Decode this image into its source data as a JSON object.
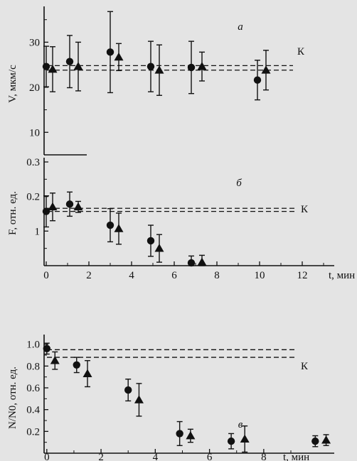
{
  "chart_data": [
    {
      "type": "scatter",
      "panel_label": "а",
      "ylabel": "V, мкм/с",
      "xlabel": "",
      "ylim": [
        5,
        37
      ],
      "xlim": [
        -0.1,
        13.5
      ],
      "yticks": [
        "10",
        "20",
        "30"
      ],
      "xticks": [],
      "reference_label": "К",
      "reference_lines": [
        23.8,
        24.8
      ],
      "series": [
        {
          "marker": "circle",
          "x": [
            0,
            1.1,
            3.0,
            4.9,
            6.8,
            9.9
          ],
          "y": [
            24.6,
            25.7,
            27.8,
            24.6,
            24.4,
            21.6
          ],
          "err": [
            4.5,
            5.8,
            9.0,
            5.6,
            5.8,
            4.4
          ]
        },
        {
          "marker": "triangle",
          "x": [
            0.3,
            1.5,
            3.4,
            5.3,
            7.3,
            10.3
          ],
          "y": [
            24.0,
            24.6,
            26.7,
            23.8,
            24.6,
            23.8
          ],
          "err": [
            5.0,
            5.4,
            3.0,
            5.6,
            3.2,
            4.4
          ]
        }
      ]
    },
    {
      "type": "scatter",
      "panel_label": "б",
      "ylabel": "F, отн. ед.",
      "xlabel": "t, мин",
      "ylim": [
        0,
        0.3
      ],
      "xlim": [
        -0.1,
        13.5
      ],
      "yticks": [
        "0.1",
        "0.2",
        "0.3"
      ],
      "yticks_shown_as": [
        "1",
        "0.2",
        "0.3"
      ],
      "xticks": [
        "0",
        "2",
        "4",
        "6",
        "8",
        "10",
        "12"
      ],
      "reference_label": "К",
      "reference_lines": [
        0.157,
        0.166
      ],
      "series": [
        {
          "marker": "circle",
          "x": [
            0,
            1.1,
            3.0,
            4.9,
            6.8
          ],
          "y": [
            0.157,
            0.178,
            0.117,
            0.072,
            0.008
          ],
          "err": [
            0.045,
            0.035,
            0.048,
            0.045,
            0.02
          ]
        },
        {
          "marker": "triangle",
          "x": [
            0.3,
            1.5,
            3.4,
            5.3,
            7.3
          ],
          "y": [
            0.17,
            0.17,
            0.107,
            0.05,
            0.01
          ],
          "err": [
            0.04,
            0.016,
            0.045,
            0.04,
            0.02
          ]
        }
      ]
    },
    {
      "type": "scatter",
      "panel_label": "в",
      "ylabel": "N/N0, отн. ед.",
      "xlabel": "t, мин",
      "ylim": [
        0,
        1.05
      ],
      "xlim": [
        -0.1,
        10.6
      ],
      "yticks": [
        "0.2",
        "0.4",
        "0.6",
        "0.8",
        "1.0"
      ],
      "xticks": [
        "0",
        "2",
        "4",
        "6",
        "8"
      ],
      "reference_label": "К",
      "reference_lines": [
        0.88,
        0.95
      ],
      "series": [
        {
          "marker": "circle",
          "x": [
            0,
            1.1,
            3.0,
            4.9,
            6.8,
            9.9
          ],
          "y": [
            0.96,
            0.81,
            0.58,
            0.18,
            0.11,
            0.11
          ],
          "err": [
            0.05,
            0.07,
            0.1,
            0.11,
            0.07,
            0.05
          ]
        },
        {
          "marker": "triangle",
          "x": [
            0.3,
            1.5,
            3.4,
            5.3,
            7.3,
            10.3
          ],
          "y": [
            0.85,
            0.73,
            0.49,
            0.16,
            0.13,
            0.12
          ],
          "err": [
            0.08,
            0.12,
            0.15,
            0.06,
            0.12,
            0.05
          ]
        }
      ]
    }
  ]
}
